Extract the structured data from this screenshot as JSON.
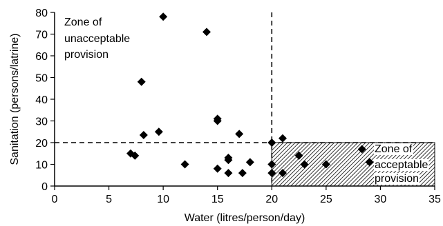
{
  "chart_data": {
    "type": "scatter",
    "title": "",
    "xlabel": "Water (litres/person/day)",
    "ylabel": "Sanitation (persons/latrine)",
    "xlim": [
      0,
      35
    ],
    "ylim": [
      0,
      80
    ],
    "xticks": [
      0,
      5,
      10,
      15,
      20,
      25,
      30,
      35
    ],
    "yticks": [
      0,
      10,
      20,
      30,
      40,
      50,
      60,
      70,
      80
    ],
    "grid": false,
    "legend": "none",
    "marker": "diamond",
    "marker_color": "#000000",
    "threshold_lines": {
      "x": 20,
      "y": 20,
      "style": "dashed"
    },
    "annotations": {
      "unacceptable": [
        "Zone of",
        "unacceptable",
        "provision"
      ],
      "acceptable": [
        "Zone of",
        "acceptable",
        "provision"
      ]
    },
    "acceptable_zone": {
      "x": [
        20,
        35
      ],
      "y": [
        0,
        20
      ],
      "fill": "hatched"
    },
    "points": [
      {
        "x": 10,
        "y": 78
      },
      {
        "x": 14,
        "y": 71
      },
      {
        "x": 8,
        "y": 48
      },
      {
        "x": 15,
        "y": 31
      },
      {
        "x": 15,
        "y": 30
      },
      {
        "x": 9.6,
        "y": 25
      },
      {
        "x": 8.2,
        "y": 23.5
      },
      {
        "x": 17,
        "y": 24
      },
      {
        "x": 7,
        "y": 15
      },
      {
        "x": 7.4,
        "y": 14
      },
      {
        "x": 12,
        "y": 10
      },
      {
        "x": 15,
        "y": 8
      },
      {
        "x": 16,
        "y": 13
      },
      {
        "x": 16,
        "y": 12
      },
      {
        "x": 16,
        "y": 6
      },
      {
        "x": 17.3,
        "y": 6
      },
      {
        "x": 18,
        "y": 11
      },
      {
        "x": 20,
        "y": 20
      },
      {
        "x": 20,
        "y": 10
      },
      {
        "x": 20,
        "y": 6
      },
      {
        "x": 21,
        "y": 22
      },
      {
        "x": 21,
        "y": 6
      },
      {
        "x": 22.5,
        "y": 14
      },
      {
        "x": 23,
        "y": 10
      },
      {
        "x": 25,
        "y": 10
      },
      {
        "x": 28.3,
        "y": 17
      },
      {
        "x": 29,
        "y": 11
      }
    ]
  }
}
